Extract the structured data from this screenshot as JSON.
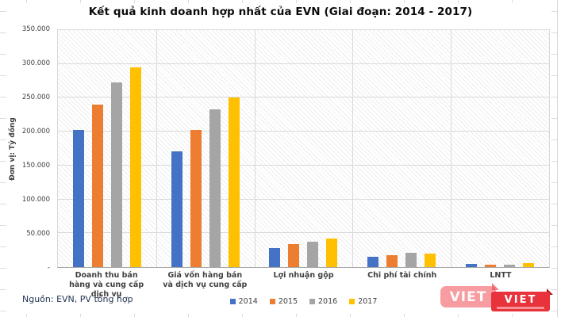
{
  "title": "Kết quả kinh doanh hợp nhất của EVN (Giai đoạn: 2014 - 2017)",
  "y_axis": {
    "title": "Đơn vị: Tỷ đồng",
    "ticks": [
      "350.000",
      "300.000",
      "250.000",
      "200.000",
      "150.000",
      "100.000",
      "50.000",
      "-"
    ]
  },
  "source": "Nguồn: EVN, PV tổng hợp",
  "watermark": {
    "large_text": "VIET",
    "small_text": "VIET"
  },
  "chart_data": {
    "type": "bar",
    "title": "Kết quả kinh doanh hợp nhất của EVN (Giai đoạn: 2014 - 2017)",
    "xlabel": "",
    "ylabel": "Đơn vị: Tỷ đồng",
    "ylim": [
      0,
      350000
    ],
    "grid": true,
    "legend_position": "bottom",
    "categories": [
      "Doanh thu bán hàng và cung cấp dịch vụ",
      "Giá vốn hàng bán và dịch vụ cung cấp",
      "Lợi nhuận gộp",
      "Chi phí tài chính",
      "LNTT"
    ],
    "series": [
      {
        "name": "2014",
        "color": "#4472C4",
        "values": [
          202000,
          171000,
          28000,
          15000,
          5000
        ]
      },
      {
        "name": "2015",
        "color": "#ED7D31",
        "values": [
          240000,
          203000,
          34000,
          17000,
          3000
        ]
      },
      {
        "name": "2016",
        "color": "#A5A5A5",
        "values": [
          273000,
          233000,
          37000,
          21000,
          4000
        ]
      },
      {
        "name": "2017",
        "color": "#FFC000",
        "values": [
          295000,
          251000,
          42000,
          20000,
          6000
        ]
      }
    ]
  }
}
